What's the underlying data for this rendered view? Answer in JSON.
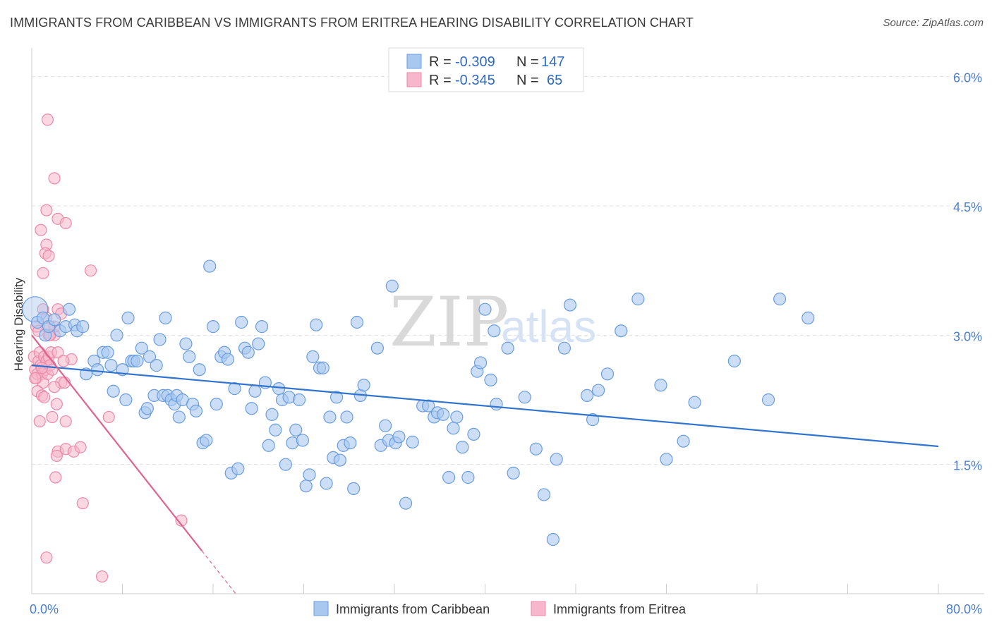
{
  "title": "IMMIGRANTS FROM CARIBBEAN VS IMMIGRANTS FROM ERITREA HEARING DISABILITY CORRELATION CHART",
  "source": "Source: ZipAtlas.com",
  "watermark": {
    "zip": "ZIP",
    "atlas": "atlas"
  },
  "legend": {
    "rows": [
      {
        "r_label": "R =",
        "r_value": "-0.309",
        "n_label": "N =",
        "n_value": "147"
      },
      {
        "r_label": "R =",
        "r_value": "-0.345",
        "n_label": "N =",
        "n_value": "65"
      }
    ]
  },
  "bottom_legend": {
    "items": [
      "Immigrants from Caribbean",
      "Immigrants from Eritrea"
    ]
  },
  "colors": {
    "caribbean_fill": "#a8c8f0",
    "caribbean_stroke": "#6a9de0",
    "caribbean_line": "#2f74d0",
    "eritrea_fill": "#f7b6cb",
    "eritrea_stroke": "#ee88a8",
    "eritrea_line": "#e0628e",
    "axis_text": "#4a7fcf"
  },
  "chart_data": {
    "type": "scatter",
    "title": "IMMIGRANTS FROM CARIBBEAN VS IMMIGRANTS FROM ERITREA HEARING DISABILITY CORRELATION CHART",
    "xlabel": "",
    "ylabel": "Hearing Disability",
    "xlim": [
      0,
      80
    ],
    "ylim": [
      0,
      6.3
    ],
    "x_tick_labels": [
      "0.0%",
      "80.0%"
    ],
    "y_ticks": [
      1.5,
      3.0,
      4.5,
      6.0
    ],
    "y_tick_labels": [
      "1.5%",
      "3.0%",
      "4.5%",
      "6.0%"
    ],
    "grid": true,
    "legend_position": "top-center",
    "series": [
      {
        "name": "Immigrants from Caribbean",
        "R": -0.309,
        "N": 147,
        "trend": {
          "x0": 0,
          "y0": 2.65,
          "x1": 80,
          "y1": 1.71
        },
        "points": [
          [
            0.3,
            3.3
          ],
          [
            0.5,
            3.15
          ],
          [
            1.0,
            3.2
          ],
          [
            1.2,
            3.0
          ],
          [
            1.5,
            3.1
          ],
          [
            2.0,
            3.18
          ],
          [
            2.5,
            3.05
          ],
          [
            3.0,
            3.1
          ],
          [
            3.3,
            3.3
          ],
          [
            3.8,
            3.12
          ],
          [
            4.0,
            3.05
          ],
          [
            4.5,
            3.1
          ],
          [
            4.8,
            2.55
          ],
          [
            5.5,
            2.7
          ],
          [
            5.8,
            2.6
          ],
          [
            6.3,
            2.8
          ],
          [
            6.7,
            2.8
          ],
          [
            7.0,
            2.65
          ],
          [
            7.2,
            2.35
          ],
          [
            7.5,
            3.0
          ],
          [
            8.0,
            2.6
          ],
          [
            8.3,
            2.25
          ],
          [
            8.5,
            3.2
          ],
          [
            8.8,
            2.7
          ],
          [
            9.0,
            2.7
          ],
          [
            9.3,
            2.7
          ],
          [
            9.7,
            2.85
          ],
          [
            10.0,
            2.1
          ],
          [
            10.2,
            2.15
          ],
          [
            10.4,
            2.75
          ],
          [
            10.8,
            2.3
          ],
          [
            11.0,
            2.65
          ],
          [
            11.3,
            2.95
          ],
          [
            11.6,
            2.3
          ],
          [
            11.8,
            3.2
          ],
          [
            12.0,
            2.3
          ],
          [
            12.3,
            2.25
          ],
          [
            12.6,
            2.2
          ],
          [
            12.8,
            2.3
          ],
          [
            13.0,
            2.05
          ],
          [
            13.3,
            2.25
          ],
          [
            13.6,
            2.9
          ],
          [
            13.9,
            2.75
          ],
          [
            14.2,
            2.2
          ],
          [
            14.5,
            2.12
          ],
          [
            14.8,
            2.6
          ],
          [
            15.1,
            1.75
          ],
          [
            15.4,
            1.78
          ],
          [
            15.7,
            3.8
          ],
          [
            16.0,
            3.1
          ],
          [
            16.3,
            2.2
          ],
          [
            16.7,
            2.75
          ],
          [
            17.0,
            2.8
          ],
          [
            17.3,
            2.72
          ],
          [
            17.6,
            1.4
          ],
          [
            17.9,
            2.38
          ],
          [
            18.2,
            1.45
          ],
          [
            18.5,
            3.15
          ],
          [
            18.8,
            2.85
          ],
          [
            19.1,
            2.8
          ],
          [
            19.4,
            2.15
          ],
          [
            19.7,
            2.35
          ],
          [
            20.0,
            2.9
          ],
          [
            20.3,
            3.1
          ],
          [
            20.6,
            2.45
          ],
          [
            20.9,
            1.72
          ],
          [
            21.2,
            2.08
          ],
          [
            21.5,
            1.9
          ],
          [
            21.8,
            2.38
          ],
          [
            22.1,
            2.25
          ],
          [
            22.4,
            1.5
          ],
          [
            22.7,
            2.28
          ],
          [
            23.0,
            1.75
          ],
          [
            23.3,
            1.9
          ],
          [
            23.6,
            2.25
          ],
          [
            23.9,
            1.78
          ],
          [
            24.2,
            1.25
          ],
          [
            24.5,
            1.38
          ],
          [
            24.8,
            2.75
          ],
          [
            25.1,
            3.12
          ],
          [
            25.4,
            2.62
          ],
          [
            25.7,
            2.62
          ],
          [
            26.0,
            1.28
          ],
          [
            26.3,
            2.05
          ],
          [
            26.6,
            1.58
          ],
          [
            26.9,
            2.28
          ],
          [
            27.2,
            1.55
          ],
          [
            27.5,
            1.72
          ],
          [
            27.8,
            2.05
          ],
          [
            28.1,
            1.75
          ],
          [
            28.4,
            1.22
          ],
          [
            28.7,
            3.15
          ],
          [
            29.0,
            2.3
          ],
          [
            29.3,
            2.42
          ],
          [
            30.5,
            2.85
          ],
          [
            30.8,
            1.72
          ],
          [
            31.2,
            1.95
          ],
          [
            31.5,
            1.78
          ],
          [
            31.8,
            3.57
          ],
          [
            32.1,
            1.75
          ],
          [
            32.4,
            1.82
          ],
          [
            33.0,
            1.05
          ],
          [
            33.6,
            1.76
          ],
          [
            34.5,
            2.18
          ],
          [
            35.0,
            2.18
          ],
          [
            35.5,
            2.05
          ],
          [
            35.8,
            2.1
          ],
          [
            36.3,
            2.08
          ],
          [
            36.8,
            1.35
          ],
          [
            37.2,
            1.92
          ],
          [
            37.5,
            2.05
          ],
          [
            38.0,
            1.7
          ],
          [
            38.5,
            1.35
          ],
          [
            39.0,
            1.85
          ],
          [
            39.3,
            2.58
          ],
          [
            39.6,
            2.68
          ],
          [
            40.0,
            3.3
          ],
          [
            40.5,
            2.48
          ],
          [
            40.8,
            3.05
          ],
          [
            41.0,
            2.2
          ],
          [
            42.0,
            2.85
          ],
          [
            42.5,
            1.4
          ],
          [
            43.5,
            2.28
          ],
          [
            44.5,
            1.68
          ],
          [
            45.2,
            1.15
          ],
          [
            46.0,
            0.63
          ],
          [
            46.3,
            1.56
          ],
          [
            47.0,
            2.85
          ],
          [
            47.5,
            3.35
          ],
          [
            49.0,
            2.3
          ],
          [
            49.5,
            2.02
          ],
          [
            50.0,
            2.36
          ],
          [
            50.8,
            2.55
          ],
          [
            52.0,
            3.05
          ],
          [
            53.5,
            3.42
          ],
          [
            55.5,
            2.42
          ],
          [
            56.0,
            1.56
          ],
          [
            57.5,
            1.77
          ],
          [
            58.5,
            2.22
          ],
          [
            62.0,
            2.7
          ],
          [
            65.0,
            2.25
          ],
          [
            66.0,
            3.42
          ],
          [
            68.5,
            3.2
          ]
        ]
      },
      {
        "name": "Immigrants from Eritrea",
        "R": -0.345,
        "N": 65,
        "trend": {
          "x0": 0,
          "y0": 3.0,
          "x1": 15.0,
          "y1": 0.5,
          "dashed_to_x": 18.0,
          "dashed_to_y": 0.0
        },
        "points": [
          [
            0.2,
            2.75
          ],
          [
            0.3,
            2.6
          ],
          [
            0.4,
            2.5
          ],
          [
            0.5,
            2.55
          ],
          [
            0.6,
            2.7
          ],
          [
            0.7,
            2.8
          ],
          [
            0.8,
            2.65
          ],
          [
            0.9,
            2.55
          ],
          [
            1.0,
            2.45
          ],
          [
            1.1,
            2.75
          ],
          [
            1.2,
            2.6
          ],
          [
            1.3,
            2.7
          ],
          [
            1.4,
            2.55
          ],
          [
            1.5,
            2.75
          ],
          [
            1.6,
            2.65
          ],
          [
            1.7,
            2.8
          ],
          [
            1.8,
            2.6
          ],
          [
            0.3,
            2.5
          ],
          [
            0.5,
            2.35
          ],
          [
            0.7,
            2.0
          ],
          [
            0.9,
            2.3
          ],
          [
            1.1,
            2.28
          ],
          [
            0.4,
            3.1
          ],
          [
            0.6,
            3.05
          ],
          [
            1.0,
            3.3
          ],
          [
            1.3,
            3.2
          ],
          [
            1.6,
            3.1
          ],
          [
            2.0,
            3.0
          ],
          [
            2.3,
            3.3
          ],
          [
            2.6,
            3.25
          ],
          [
            2.0,
            3.1
          ],
          [
            1.5,
            3.0
          ],
          [
            2.3,
            2.8
          ],
          [
            2.2,
            2.2
          ],
          [
            1.8,
            2.05
          ],
          [
            2.6,
            2.45
          ],
          [
            2.9,
            2.45
          ],
          [
            2.0,
            2.4
          ],
          [
            3.0,
            2.0
          ],
          [
            3.5,
            2.72
          ],
          [
            1.4,
            5.5
          ],
          [
            2.0,
            4.82
          ],
          [
            1.3,
            4.45
          ],
          [
            2.3,
            4.35
          ],
          [
            3.0,
            4.3
          ],
          [
            0.8,
            4.22
          ],
          [
            1.3,
            4.05
          ],
          [
            1.2,
            3.95
          ],
          [
            1.5,
            3.92
          ],
          [
            1.0,
            3.72
          ],
          [
            5.2,
            3.75
          ],
          [
            2.3,
            1.65
          ],
          [
            2.2,
            1.6
          ],
          [
            3.0,
            1.68
          ],
          [
            3.7,
            1.65
          ],
          [
            4.3,
            1.7
          ],
          [
            2.1,
            1.35
          ],
          [
            4.5,
            1.05
          ],
          [
            6.8,
            2.05
          ],
          [
            13.2,
            0.85
          ],
          [
            1.3,
            0.42
          ],
          [
            6.2,
            0.2
          ],
          [
            1.6,
            3.0
          ],
          [
            0.9,
            2.62
          ],
          [
            2.8,
            2.7
          ]
        ]
      }
    ]
  }
}
